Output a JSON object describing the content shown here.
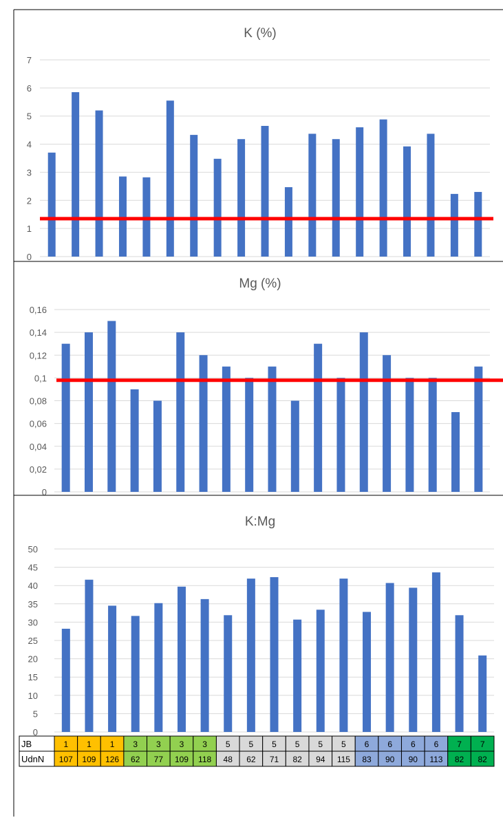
{
  "colors": {
    "bar": "#4472C4",
    "threshold": "#FF0000",
    "grid": "#D9D9D9",
    "text": "#595959",
    "orange": "#FFC000",
    "light_green": "#92D050",
    "grey": "#D9D9D9",
    "blue_grey": "#8EA9DB",
    "green": "#00B050"
  },
  "chart_data": [
    {
      "type": "bar",
      "title": "K (%)",
      "ylim": [
        0,
        7
      ],
      "yticks": [
        "0",
        "1",
        "2",
        "3",
        "4",
        "5",
        "6",
        "7"
      ],
      "values": [
        3.7,
        5.85,
        5.2,
        2.85,
        2.82,
        5.55,
        4.33,
        3.48,
        4.18,
        4.65,
        2.47,
        4.37,
        4.18,
        4.6,
        4.88,
        3.92,
        4.37,
        2.23,
        2.3
      ],
      "threshold": 1.35,
      "grid": true
    },
    {
      "type": "bar",
      "title": "Mg (%)",
      "ylim": [
        0,
        0.16
      ],
      "yticks": [
        "0",
        "0,02",
        "0,04",
        "0,06",
        "0,08",
        "0,1",
        "0,12",
        "0,14",
        "0,16"
      ],
      "values": [
        0.13,
        0.14,
        0.15,
        0.09,
        0.08,
        0.14,
        0.12,
        0.11,
        0.1,
        0.11,
        0.08,
        0.13,
        0.1,
        0.14,
        0.12,
        0.1,
        0.1,
        0.07,
        0.11
      ],
      "threshold": 0.098,
      "grid": true
    },
    {
      "type": "bar",
      "title": "K:Mg",
      "ylim": [
        0,
        50
      ],
      "yticks": [
        "0",
        "5",
        "10",
        "15",
        "20",
        "25",
        "30",
        "35",
        "40",
        "45",
        "50"
      ],
      "values": [
        28.2,
        41.6,
        34.5,
        31.7,
        35.2,
        39.7,
        36.3,
        31.9,
        41.9,
        42.3,
        30.7,
        33.4,
        41.9,
        32.8,
        40.7,
        39.4,
        43.6,
        31.9,
        20.9
      ],
      "grid": true
    }
  ],
  "table": {
    "row_labels": [
      "JB",
      "UdnN"
    ],
    "jb": [
      "1",
      "1",
      "1",
      "3",
      "3",
      "3",
      "3",
      "5",
      "5",
      "5",
      "5",
      "5",
      "5",
      "6",
      "6",
      "6",
      "6",
      "7",
      "7"
    ],
    "udnn": [
      "107",
      "109",
      "126",
      "62",
      "77",
      "109",
      "118",
      "48",
      "62",
      "71",
      "82",
      "94",
      "115",
      "83",
      "90",
      "90",
      "113",
      "82",
      "82"
    ],
    "groups": [
      "orange",
      "orange",
      "orange",
      "light_green",
      "light_green",
      "light_green",
      "light_green",
      "grey",
      "grey",
      "grey",
      "grey",
      "grey",
      "grey",
      "blue_grey",
      "blue_grey",
      "blue_grey",
      "blue_grey",
      "green",
      "green"
    ]
  }
}
